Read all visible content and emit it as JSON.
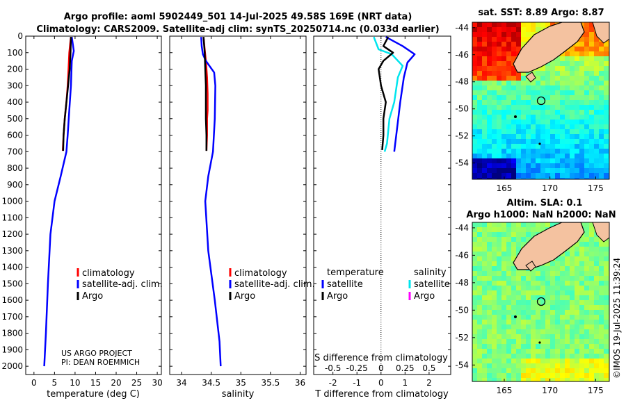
{
  "header": {
    "title_line1": "Argo profile: aoml 5902449_501 14-Jul-2025 49.58S 169E (NRT data)",
    "title_line2": "Climatology: CARS2009. Satellite-adj clim: synTS_20250714.nc (0.033d earlier)"
  },
  "credits": {
    "line1": "US ARGO PROJECT",
    "line2": "PI: DEAN ROEMMICH"
  },
  "watermark": "©IMOS 19-Jul-2025 11:39:24",
  "colors": {
    "climatology": "#ff0000",
    "satellite": "#0000ff",
    "argo": "#000000",
    "sat_diff": "#00e5ee",
    "argo_sal_diff": "#ff00ff"
  },
  "chart_data": [
    {
      "type": "line",
      "id": "temperature",
      "xlabel": "temperature (deg C)",
      "ylabel": "",
      "xlim": [
        -2,
        31
      ],
      "ylim": [
        2050,
        0
      ],
      "xticks": [
        0,
        5,
        10,
        15,
        20,
        25,
        30
      ],
      "yticks": [
        0,
        100,
        200,
        300,
        400,
        500,
        600,
        700,
        800,
        900,
        1000,
        1100,
        1200,
        1300,
        1400,
        1500,
        1600,
        1700,
        1800,
        1900,
        2000
      ],
      "legend": [
        "climatology",
        "satellite-adj. clim.",
        "Argo"
      ],
      "series": [
        {
          "name": "climatology",
          "color": "#ff0000",
          "points": [
            [
              9.0,
              5
            ],
            [
              8.8,
              50
            ],
            [
              8.6,
              100
            ],
            [
              8.4,
              200
            ],
            [
              8.2,
              300
            ],
            [
              7.9,
              400
            ],
            [
              7.5,
              500
            ],
            [
              7.2,
              600
            ],
            [
              7.0,
              695
            ]
          ]
        },
        {
          "name": "satellite-adj. clim.",
          "color": "#0000ff",
          "points": [
            [
              9.2,
              5
            ],
            [
              9.7,
              90
            ],
            [
              9.2,
              150
            ],
            [
              9.0,
              300
            ],
            [
              8.6,
              450
            ],
            [
              8.2,
              600
            ],
            [
              7.9,
              700
            ],
            [
              6.5,
              850
            ],
            [
              5.0,
              1000
            ],
            [
              4.0,
              1200
            ],
            [
              3.4,
              1500
            ],
            [
              2.9,
              1800
            ],
            [
              2.5,
              2000
            ]
          ]
        },
        {
          "name": "Argo",
          "color": "#000000",
          "points": [
            [
              9.0,
              5
            ],
            [
              8.9,
              100
            ],
            [
              8.7,
              200
            ],
            [
              8.3,
              300
            ],
            [
              7.9,
              400
            ],
            [
              7.5,
              500
            ],
            [
              7.2,
              600
            ],
            [
              7.1,
              695
            ]
          ]
        }
      ]
    },
    {
      "type": "line",
      "id": "salinity",
      "xlabel": "salinity",
      "xlim": [
        33.8,
        36.1
      ],
      "ylim": [
        2050,
        0
      ],
      "xticks": [
        34,
        34.5,
        35,
        35.5,
        36
      ],
      "xticklabels": [
        "34",
        "34.5",
        "35",
        "35.5",
        "36"
      ],
      "legend": [
        "climatology",
        "satellite-adj. clim.",
        "Argo"
      ],
      "series": [
        {
          "name": "climatology",
          "color": "#ff0000",
          "points": [
            [
              34.37,
              5
            ],
            [
              34.39,
              80
            ],
            [
              34.41,
              150
            ],
            [
              34.43,
              250
            ],
            [
              34.44,
              350
            ],
            [
              34.44,
              450
            ],
            [
              34.43,
              500
            ],
            [
              34.43,
              600
            ],
            [
              34.42,
              695
            ]
          ]
        },
        {
          "name": "satellite-adj. clim.",
          "color": "#0000ff",
          "points": [
            [
              34.33,
              5
            ],
            [
              34.34,
              60
            ],
            [
              34.36,
              110
            ],
            [
              34.41,
              150
            ],
            [
              34.55,
              220
            ],
            [
              34.57,
              300
            ],
            [
              34.56,
              500
            ],
            [
              34.53,
              700
            ],
            [
              34.45,
              850
            ],
            [
              34.4,
              1000
            ],
            [
              34.45,
              1300
            ],
            [
              34.56,
              1600
            ],
            [
              34.64,
              1850
            ],
            [
              34.66,
              2000
            ]
          ]
        },
        {
          "name": "Argo",
          "color": "#000000",
          "points": [
            [
              34.37,
              5
            ],
            [
              34.39,
              100
            ],
            [
              34.4,
              200
            ],
            [
              34.41,
              300
            ],
            [
              34.41,
              500
            ],
            [
              34.42,
              600
            ],
            [
              34.42,
              695
            ]
          ]
        }
      ]
    },
    {
      "type": "line",
      "id": "difference",
      "xlabel": "T difference from climatology",
      "top_xlabel": "S difference from climatology",
      "xlim": [
        -2.8,
        2.9
      ],
      "ylim": [
        2050,
        0
      ],
      "xticks": [
        -2,
        -1,
        0,
        1,
        2
      ],
      "top_xticklabels": [
        "-0.5",
        "-0.25",
        "0",
        "0.25",
        "0.5"
      ],
      "top_xtick_positions": [
        -2,
        -1,
        0,
        1,
        2
      ],
      "legend_temperature_title": "temperature",
      "legend_salinity_title": "salinity",
      "legend": [
        "satellite",
        "Argo"
      ],
      "series": [
        {
          "name": "T satellite",
          "color": "#0000ff",
          "points": [
            [
              0.2,
              5
            ],
            [
              0.9,
              60
            ],
            [
              1.4,
              110
            ],
            [
              1.1,
              160
            ],
            [
              0.95,
              250
            ],
            [
              0.8,
              400
            ],
            [
              0.7,
              520
            ],
            [
              0.55,
              700
            ]
          ]
        },
        {
          "name": "S satellite",
          "color": "#00e5ee",
          "points": [
            [
              -0.3,
              5
            ],
            [
              -0.1,
              80
            ],
            [
              0.45,
              110
            ],
            [
              0.9,
              180
            ],
            [
              0.7,
              250
            ],
            [
              0.55,
              400
            ],
            [
              0.35,
              500
            ],
            [
              0.25,
              650
            ],
            [
              0.15,
              700
            ]
          ]
        },
        {
          "name": "Argo",
          "color": "#000000",
          "points": [
            [
              0.3,
              5
            ],
            [
              0.1,
              60
            ],
            [
              0.5,
              100
            ],
            [
              0.1,
              150
            ],
            [
              -0.1,
              200
            ],
            [
              0.0,
              300
            ],
            [
              0.2,
              400
            ],
            [
              0.1,
              500
            ],
            [
              0.1,
              600
            ],
            [
              0.05,
              690
            ]
          ]
        }
      ]
    },
    {
      "type": "heatmap",
      "id": "sst_map",
      "title": "sat. SST: 8.89 Argo: 8.87",
      "xticks": [
        165,
        170,
        175
      ],
      "yticks": [
        -44,
        -46,
        -48,
        -50,
        -52,
        -54
      ],
      "xlim": [
        161.5,
        176.5
      ],
      "ylim": [
        -55.2,
        -43.6
      ],
      "argo_position": [
        169.0,
        -49.6
      ]
    },
    {
      "type": "heatmap",
      "id": "sla_map",
      "title": "Altim. SLA: 0.1",
      "subtitle": "Argo h1000: NaN h2000: NaN",
      "xticks": [
        165,
        170,
        175
      ],
      "yticks": [
        -44,
        -46,
        -48,
        -50,
        -52,
        -54
      ],
      "xlim": [
        161.5,
        176.5
      ],
      "ylim": [
        -55.2,
        -43.6
      ],
      "argo_position": [
        169.0,
        -49.6
      ]
    }
  ]
}
